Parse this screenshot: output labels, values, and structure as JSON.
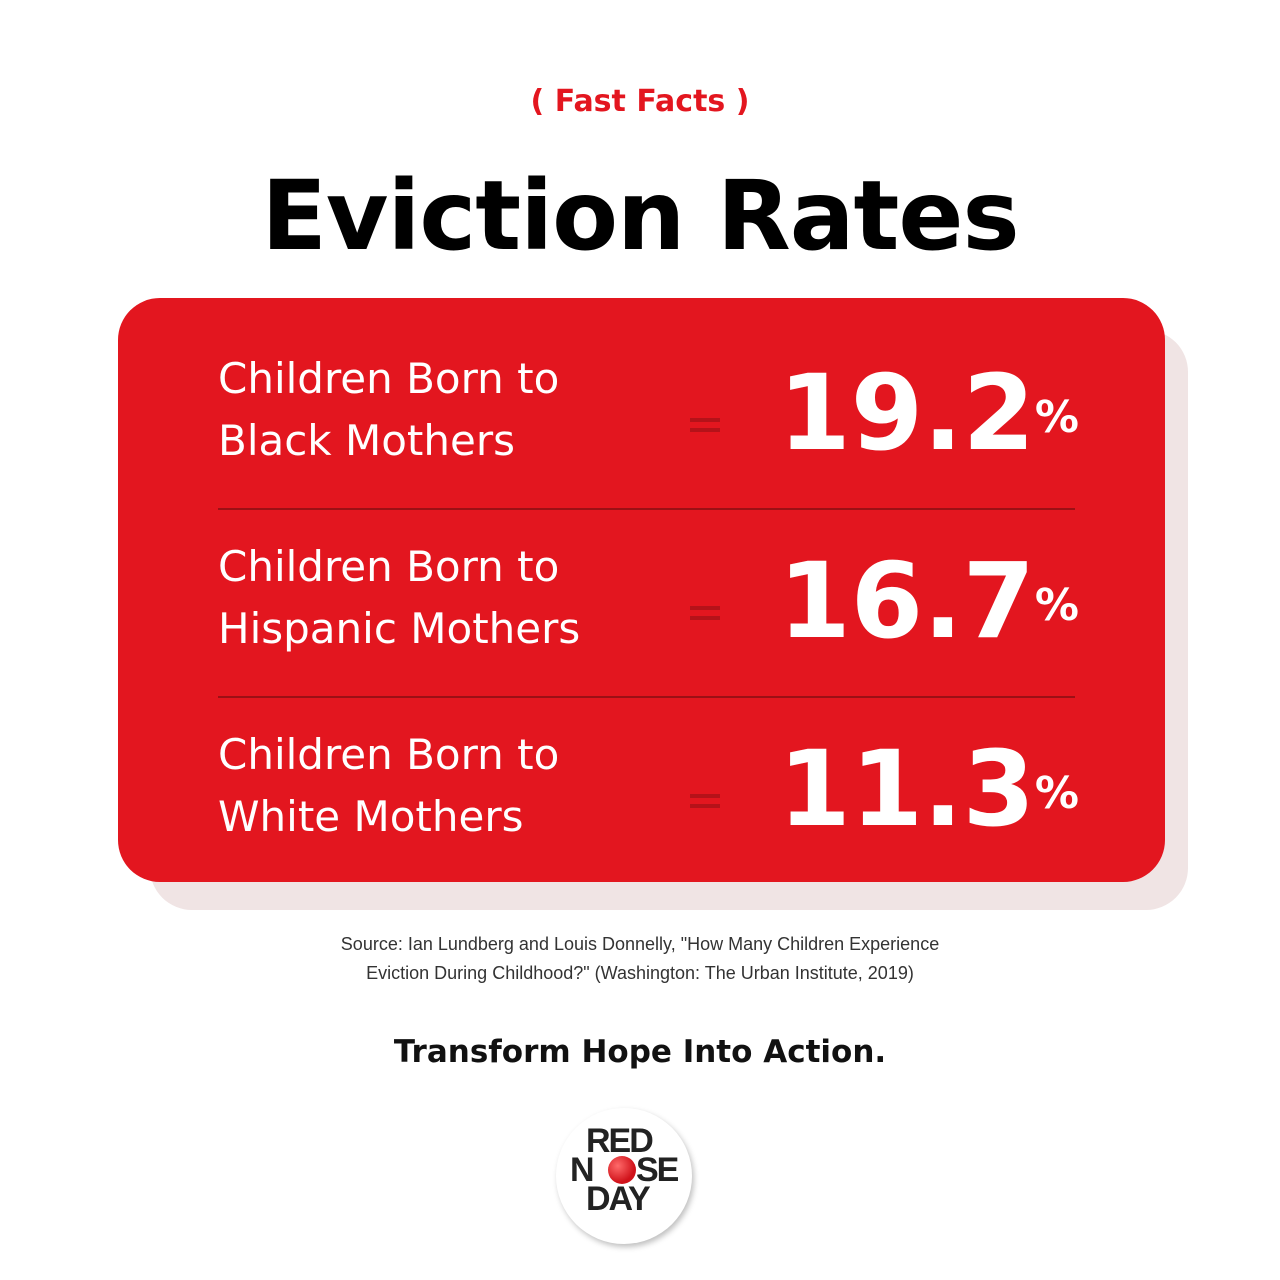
{
  "header": {
    "kicker": "( Fast Facts )",
    "title": "Eviction Rates"
  },
  "rows": [
    {
      "label": [
        "Children Born to",
        "Black Mothers"
      ],
      "value": "19.2",
      "unit": "%"
    },
    {
      "label": [
        "Children Born to",
        "Hispanic Mothers"
      ],
      "value": "16.7",
      "unit": "%"
    },
    {
      "label": [
        "Children Born to",
        "White Mothers"
      ],
      "value": "11.3",
      "unit": "%"
    }
  ],
  "source": [
    "Source: Ian Lundberg and Louis Donnelly, \"How Many Children Experience",
    "Eviction During Childhood?\" (Washington: The Urban Institute, 2019)"
  ],
  "tagline": "Transform Hope Into Action.",
  "logo": {
    "line1": "RED",
    "line2_left": "N",
    "line2_right": "SE",
    "line3": "DAY"
  }
}
